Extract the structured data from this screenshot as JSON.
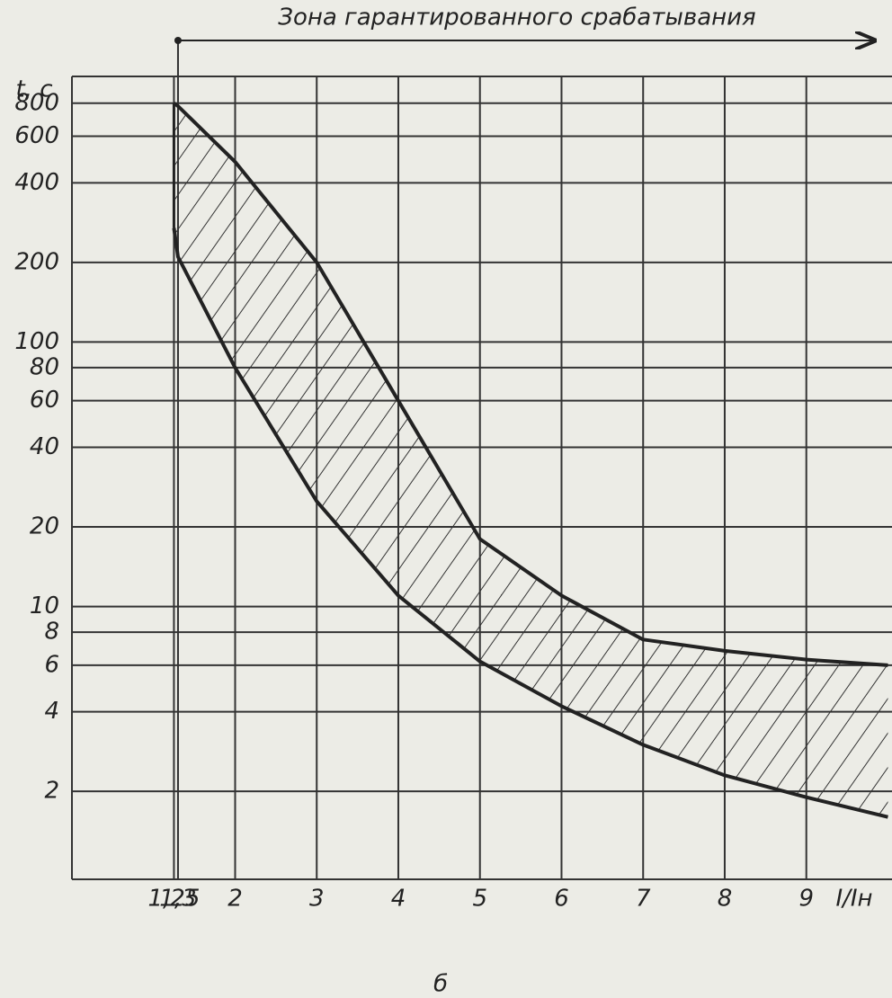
{
  "chart_data": {
    "type": "line",
    "annotation": "Зона гарантированного срабатывания",
    "caption": "б",
    "x_label": "I/Iн",
    "y_label": "t, c",
    "x": [
      1.25,
      1.3,
      2,
      3,
      4,
      5,
      6,
      7,
      8,
      9,
      10
    ],
    "series": [
      {
        "name": "upper",
        "color": "#222222",
        "values": [
          800,
          780,
          480,
          200,
          60,
          18,
          11,
          7.5,
          6.8,
          6.3,
          6
        ]
      },
      {
        "name": "lower",
        "color": "#222222",
        "values": [
          270,
          210,
          80,
          25,
          11,
          6.2,
          4.2,
          3,
          2.3,
          1.9,
          1.6
        ]
      }
    ],
    "xlim": [
      0,
      10.05
    ],
    "xticks": [
      {
        "value": 1.25,
        "label": "1,25"
      },
      {
        "value": 1.3,
        "label": "1,3"
      },
      2,
      3,
      4,
      5,
      6,
      7,
      8,
      9
    ],
    "ylim": [
      0.93,
      1010
    ],
    "log_y": true,
    "yticks": [
      2,
      4,
      6,
      8,
      10,
      20,
      40,
      60,
      80,
      100,
      200,
      400,
      600,
      800
    ],
    "grid": true
  }
}
